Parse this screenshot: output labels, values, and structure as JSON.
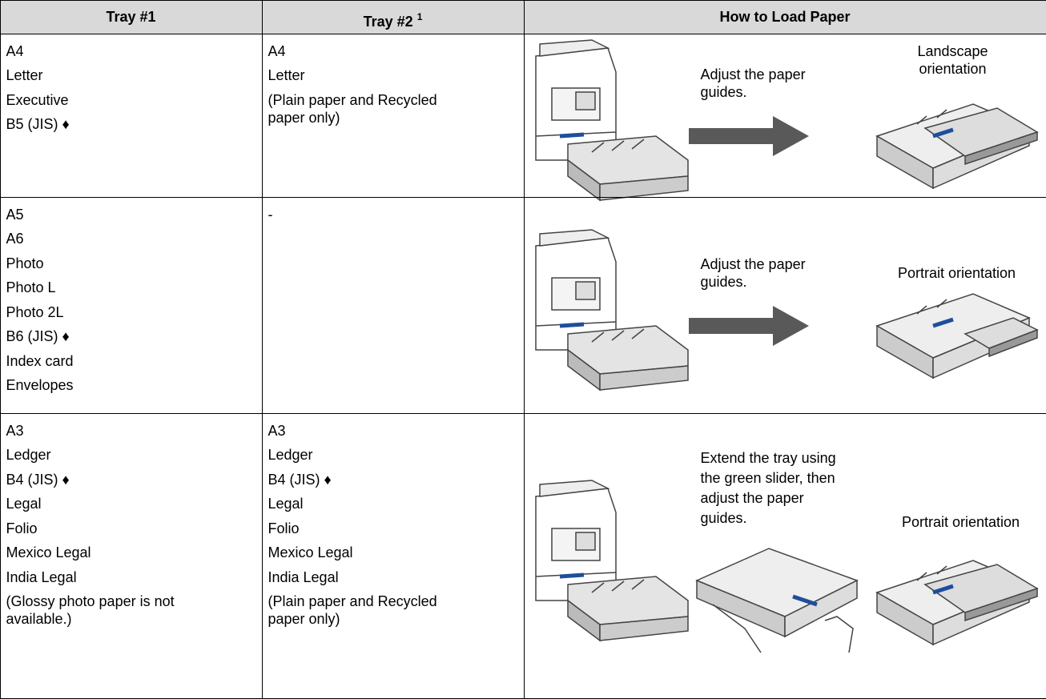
{
  "table": {
    "header": [
      {
        "text": "Tray #1"
      },
      {
        "text": "Tray #2",
        "superscript": "1"
      },
      {
        "text": "How to Load Paper"
      }
    ],
    "rows": [
      {
        "tray1": [
          "A4",
          "Letter",
          "Executive",
          "B5 (JIS) ♦"
        ],
        "tray2": [
          "A4",
          "Letter",
          "(Plain paper and Recycled paper only)"
        ],
        "step": "Adjust the paper guides.",
        "orientation": "Landscape orientation"
      },
      {
        "tray1": [
          "A5",
          "A6",
          "Photo",
          "Photo L",
          "Photo 2L",
          "B6 (JIS) ♦",
          "Index card",
          "Envelopes"
        ],
        "tray2": [
          "-"
        ],
        "step": "Adjust the paper guides.",
        "orientation": "Portrait orientation"
      },
      {
        "tray1": [
          "A3",
          "Ledger",
          "B4 (JIS) ♦",
          "Legal",
          "Folio",
          "Mexico Legal",
          "India Legal",
          "(Glossy photo paper is not available.)"
        ],
        "tray2": [
          "A3",
          "Ledger",
          "B4 (JIS) ♦",
          "Legal",
          "Folio",
          "Mexico Legal",
          "India Legal",
          "(Plain paper and Recycled paper only)"
        ],
        "step": "Extend the tray using the green slider, then adjust the paper guides.",
        "orientation": "Portrait orientation"
      }
    ]
  }
}
